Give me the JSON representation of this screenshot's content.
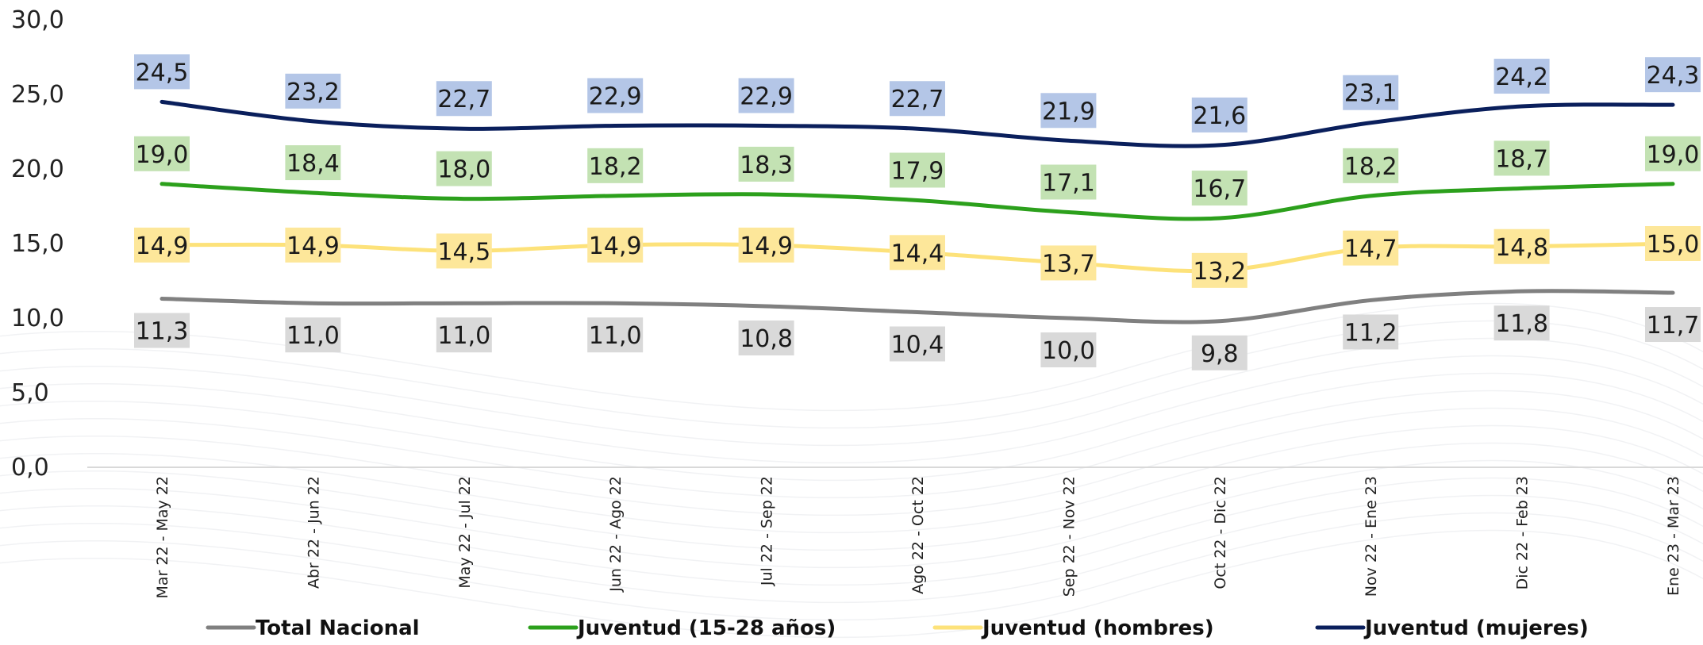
{
  "chart_data": {
    "type": "line",
    "title": "",
    "xlabel": "",
    "ylabel": "",
    "ylim": [
      0,
      30
    ],
    "yticks": [
      "0,0",
      "5,0",
      "10,0",
      "15,0",
      "20,0",
      "25,0",
      "30,0"
    ],
    "grid": false,
    "legend_position": "bottom",
    "categories": [
      "Mar 22 - May 22",
      "Abr 22 - Jun 22",
      "May 22 - Jul 22",
      "Jun 22 - Ago 22",
      "Jul 22 - Sep 22",
      "Ago 22 - Oct 22",
      "Sep 22 - Nov 22",
      "Oct 22 - Dic 22",
      "Nov 22 - Ene 23",
      "Dic 22 - Feb 23",
      "Ene 23 - Mar 23"
    ],
    "series": [
      {
        "name": "Total Nacional",
        "color": "#808080",
        "label_bg": "#d9d9d9",
        "label_position": "below",
        "values": [
          11.3,
          11.0,
          11.0,
          11.0,
          10.8,
          10.4,
          10.0,
          9.8,
          11.2,
          11.8,
          11.7
        ],
        "labels": [
          "11,3",
          "11,0",
          "11,0",
          "11,0",
          "10,8",
          "10,4",
          "10,0",
          "9,8",
          "11,2",
          "11,8",
          "11,7"
        ]
      },
      {
        "name": "Juventud (15-28 años)",
        "color": "#2ca01c",
        "label_bg": "#c3e2b3",
        "label_position": "above",
        "values": [
          19.0,
          18.4,
          18.0,
          18.2,
          18.3,
          17.9,
          17.1,
          16.7,
          18.2,
          18.7,
          19.0
        ],
        "labels": [
          "19,0",
          "18,4",
          "18,0",
          "18,2",
          "18,3",
          "17,9",
          "17,1",
          "16,7",
          "18,2",
          "18,7",
          "19,0"
        ]
      },
      {
        "name": "Juventud (hombres)",
        "color": "#fde27a",
        "label_bg": "#fde79a",
        "label_position": "center",
        "values": [
          14.9,
          14.9,
          14.5,
          14.9,
          14.9,
          14.4,
          13.7,
          13.2,
          14.7,
          14.8,
          15.0
        ],
        "labels": [
          "14,9",
          "14,9",
          "14,5",
          "14,9",
          "14,9",
          "14,4",
          "13,7",
          "13,2",
          "14,7",
          "14,8",
          "15,0"
        ]
      },
      {
        "name": "Juventud (mujeres)",
        "color": "#0a1f5c",
        "label_bg": "#b4c6e7",
        "label_position": "above",
        "values": [
          24.5,
          23.2,
          22.7,
          22.9,
          22.9,
          22.7,
          21.9,
          21.6,
          23.1,
          24.2,
          24.3
        ],
        "labels": [
          "24,5",
          "23,2",
          "22,7",
          "22,9",
          "22,9",
          "22,7",
          "21,9",
          "21,6",
          "23,1",
          "24,2",
          "24,3"
        ]
      }
    ]
  }
}
